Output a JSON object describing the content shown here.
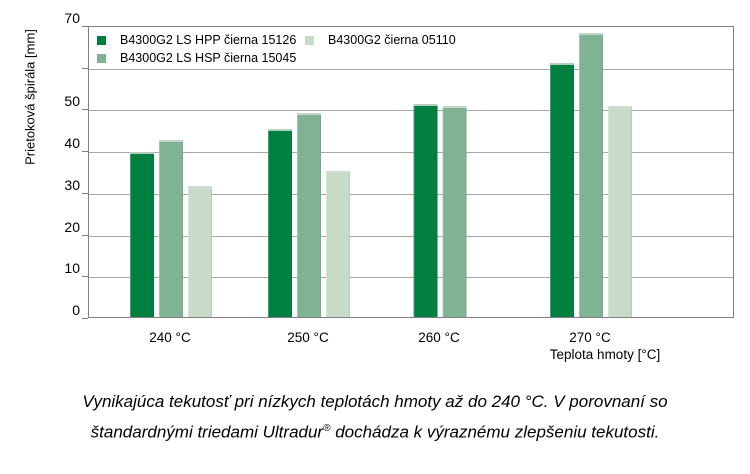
{
  "chart_data": {
    "type": "bar",
    "title": "",
    "categories": [
      "240 °C",
      "250 °C",
      "260 °C",
      "270 °C"
    ],
    "series": [
      {
        "name": "B4300G2 LS HPP čierna 15126",
        "color": "#008040",
        "values": [
          39.5,
          45,
          51,
          61
        ]
      },
      {
        "name": "B4300G2 LS HSP čierna 15045",
        "color": "#80b294",
        "values": [
          42.5,
          49,
          50.5,
          68
        ]
      },
      {
        "name": "B4300G2 čierna 05110",
        "color": "#c7dbc8",
        "values": [
          31.5,
          35,
          null,
          50.5
        ]
      }
    ],
    "xlabel": "Teplota hmoty [°C]",
    "ylabel": "Prietoková špirála [mm]",
    "ylim": [
      0,
      70
    ],
    "ytick_interval": 10,
    "ytick_labeled_values": [
      0,
      10,
      20,
      30,
      40,
      50,
      70
    ],
    "grid": "horizontal",
    "legend_position": "inside-top-left",
    "axis_color": "#808080",
    "grid_color": "#a8a8a8"
  },
  "caption": {
    "line1": "Vynikajúca tekutosť pri nízkych teplotách hmoty až do 240 °C. V porovnaní so",
    "line2_pre": "štandardnými triedami Ultradur",
    "line2_sup": "®",
    "line2_post": " dochádza k výraznému zlepšeniu tekutosti."
  }
}
